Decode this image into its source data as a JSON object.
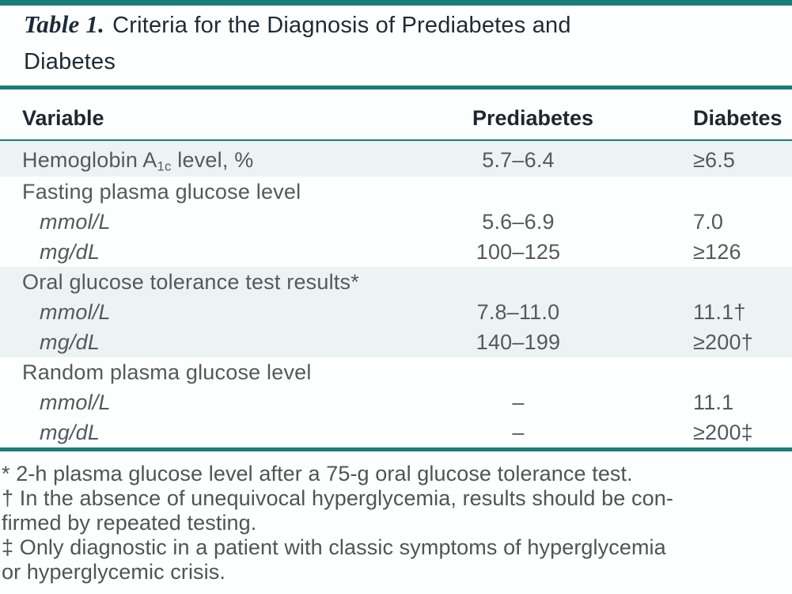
{
  "title": {
    "label": "Table 1.",
    "line1": "Criteria for the Diagnosis of Prediabetes and",
    "line2": "Diabetes",
    "full_text": "Criteria for the Diagnosis of Prediabetes and Diabetes"
  },
  "table": {
    "columns": [
      "Variable",
      "Prediabetes",
      "Diabetes"
    ],
    "rows": [
      {
        "label_pre": "Hemoglobin A",
        "label_sub": "1c",
        "label_post": " level, %",
        "prediabetes": "5.7–6.4",
        "diabetes": "≥6.5"
      },
      {
        "label": "Fasting plasma glucose level",
        "prediabetes": "",
        "diabetes": ""
      },
      {
        "label": "mmol/L",
        "prediabetes": "5.6–6.9",
        "diabetes": "7.0"
      },
      {
        "label": "mg/dL",
        "prediabetes": "100–125",
        "diabetes": "≥126"
      },
      {
        "label": "Oral glucose tolerance test results*",
        "prediabetes": "",
        "diabetes": ""
      },
      {
        "label": "mmol/L",
        "prediabetes": "7.8–11.0",
        "diabetes": "11.1†"
      },
      {
        "label": "mg/dL",
        "prediabetes": "140–199",
        "diabetes": "≥200†"
      },
      {
        "label": "Random plasma glucose level",
        "prediabetes": "",
        "diabetes": ""
      },
      {
        "label": "mmol/L",
        "prediabetes": "–",
        "diabetes": "11.1"
      },
      {
        "label": "mg/dL",
        "prediabetes": "–",
        "diabetes": "≥200‡"
      }
    ]
  },
  "footnotes": {
    "lines": [
      "* 2-h plasma glucose level after a 75-g oral glucose tolerance test.",
      "† In the absence of unequivocal hyperglycemia, results should be con-",
      "firmed by repeated testing.",
      "‡ Only diagnostic in a patient with classic symptoms of hyperglycemia",
      "or hyperglycemic crisis."
    ]
  },
  "colors": {
    "accent_teal": "#1a7d7a",
    "row_shade": "#edf3f3",
    "heading_text": "#20262e",
    "body_text": "#55595c"
  }
}
